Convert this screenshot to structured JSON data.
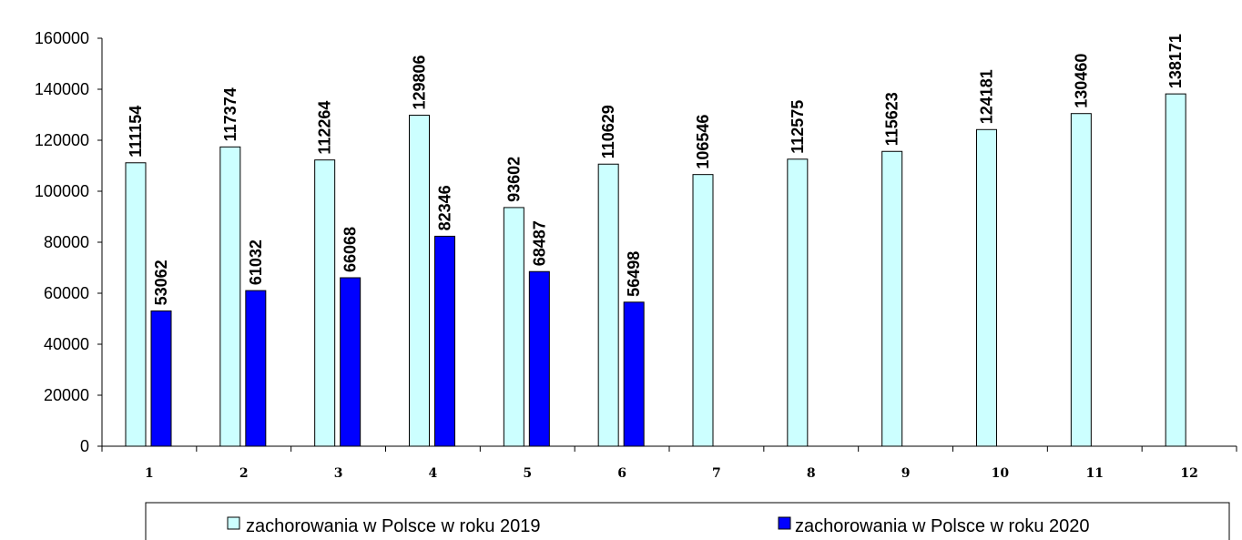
{
  "colors": {
    "series_2019": "#ccffff",
    "series_2020": "#0000ff",
    "outline": "#000000"
  },
  "chart_data": {
    "type": "bar",
    "title": "",
    "xlabel": "",
    "ylabel": "",
    "ylim": [
      0,
      160000
    ],
    "yticks": [
      0,
      20000,
      40000,
      60000,
      80000,
      100000,
      120000,
      140000,
      160000
    ],
    "grid": false,
    "legend_position": "bottom",
    "categories": [
      "1",
      "2",
      "3",
      "4",
      "5",
      "6",
      "7",
      "8",
      "9",
      "10",
      "11",
      "12"
    ],
    "series": [
      {
        "name": "zachorowania w Polsce w roku 2019",
        "values": [
          111154,
          117374,
          112264,
          129806,
          93602,
          110629,
          106546,
          112575,
          115623,
          124181,
          130460,
          138171
        ]
      },
      {
        "name": "zachorowania w Polsce w roku 2020",
        "values": [
          53062,
          61032,
          66068,
          82346,
          68487,
          56498,
          null,
          null,
          null,
          null,
          null,
          null
        ]
      }
    ]
  }
}
